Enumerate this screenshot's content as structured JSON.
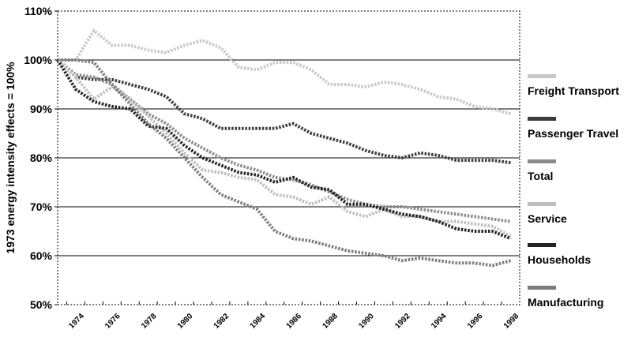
{
  "chart_data": {
    "type": "line",
    "title": "",
    "xlabel": "",
    "ylabel": "1973 energy intensity effects = 100%",
    "x": [
      1973,
      1974,
      1975,
      1976,
      1977,
      1978,
      1979,
      1980,
      1981,
      1982,
      1983,
      1984,
      1985,
      1986,
      1987,
      1988,
      1989,
      1990,
      1991,
      1992,
      1993,
      1994,
      1995,
      1996,
      1997,
      1998
    ],
    "x_tick_labels": [
      "1974",
      "1976",
      "1978",
      "1980",
      "1982",
      "1984",
      "1986",
      "1988",
      "1990",
      "1992",
      "1994",
      "1996",
      "1998"
    ],
    "x_tick_values": [
      1974,
      1976,
      1978,
      1980,
      1982,
      1984,
      1986,
      1988,
      1990,
      1992,
      1994,
      1996,
      1998
    ],
    "y_tick_labels": [
      "50%",
      "60%",
      "70%",
      "80%",
      "90%",
      "100%",
      "110%"
    ],
    "y_tick_values": [
      50,
      60,
      70,
      80,
      90,
      100,
      110
    ],
    "ylim": [
      50,
      110
    ],
    "xlim": [
      1973,
      1998.5
    ],
    "grid": "horizontal",
    "legend_position": "right",
    "series": [
      {
        "name": "Freight Transport",
        "color": "#c8c8c8",
        "values": [
          100,
          100,
          106,
          103,
          103,
          102,
          101.5,
          103,
          104,
          102.5,
          98.5,
          98,
          99.5,
          99.5,
          98,
          95,
          95,
          94.5,
          95.5,
          95,
          94,
          92.5,
          92,
          90.5,
          90,
          89
        ]
      },
      {
        "name": "Passenger Travel",
        "color": "#3c3c3c",
        "values": [
          100,
          96.5,
          96,
          96,
          95,
          94,
          92.5,
          89,
          88,
          86,
          86,
          86,
          86,
          87,
          85,
          84,
          83,
          81.5,
          80.5,
          80,
          81,
          80.5,
          79.5,
          79.5,
          79.5,
          79
        ]
      },
      {
        "name": "Total",
        "color": "#8c8c8c",
        "values": [
          100,
          97,
          96.5,
          95,
          92,
          89,
          87,
          84,
          82,
          80,
          78.5,
          77.5,
          76,
          75.5,
          74.5,
          73,
          71.5,
          70.5,
          70,
          70,
          69.5,
          69,
          68.5,
          68,
          67.5,
          67
        ]
      },
      {
        "name": "Service",
        "color": "#bebebe",
        "values": [
          100,
          96.5,
          92,
          94.5,
          92,
          88.5,
          85,
          81,
          77.5,
          77,
          76,
          75.5,
          72.5,
          72,
          70.5,
          72,
          69,
          68,
          69.5,
          68,
          68,
          67,
          67,
          66.5,
          66,
          64
        ]
      },
      {
        "name": "Households",
        "color": "#232323",
        "values": [
          100,
          94,
          91.5,
          90.5,
          90,
          86.5,
          86,
          82.5,
          80,
          78.5,
          77,
          76.5,
          75,
          76,
          74,
          73.5,
          70.5,
          70.5,
          69.5,
          68.5,
          68,
          67,
          65.5,
          65,
          65,
          63.5
        ]
      },
      {
        "name": "Manufacturing",
        "color": "#7c7c7c",
        "values": [
          100,
          100,
          99.5,
          95,
          91,
          87,
          84,
          80,
          76,
          72.5,
          71,
          69.5,
          65,
          63.5,
          63,
          62,
          61,
          60.5,
          60,
          59,
          59.5,
          59,
          58.5,
          58.5,
          58,
          59
        ]
      }
    ]
  }
}
